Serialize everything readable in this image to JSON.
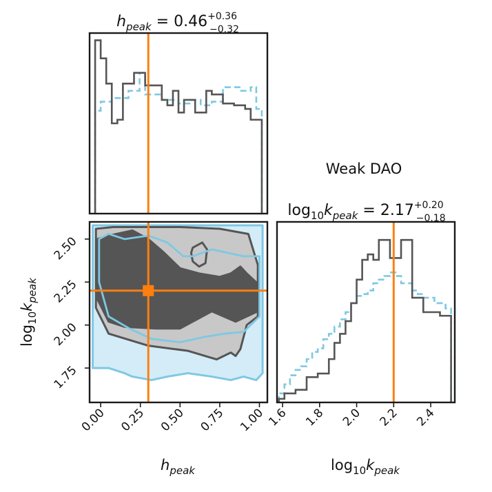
{
  "panel_title": "Weak DAO",
  "colors": {
    "reference": "#7ec8e3",
    "reference_fill": "#d3ecf7",
    "reference_fill_dark": "#a9daf0",
    "posterior": "#555555",
    "contour_inner": "#555555",
    "contour_outer": "#c8c8c8",
    "truth": "#ff7f0e"
  },
  "params": {
    "h": {
      "base": "h",
      "sub": "peak",
      "eq": " = 0.46",
      "plus": "+0.36",
      "minus": "−0.32",
      "axis_label_base": "h",
      "axis_label_sub": "peak"
    },
    "k": {
      "prefix": "log",
      "prefix_sub": "10",
      "base": "k",
      "sub": "peak",
      "eq": " = 2.17",
      "plus": "+0.20",
      "minus": "−0.18",
      "axis_label_prefix": "log",
      "axis_label_prefix_sub": "10",
      "axis_label_base": "k",
      "axis_label_sub": "peak"
    }
  },
  "chart_data": [
    {
      "type": "histogram",
      "panel": "marginal h_peak (top-left)",
      "xlim": [
        -0.07,
        1.05
      ],
      "ylim": [
        0,
        1.0
      ],
      "truth": 0.3,
      "bin_edges": [
        -0.035,
        0.0,
        0.035,
        0.07,
        0.105,
        0.14,
        0.175,
        0.21,
        0.245,
        0.28,
        0.315,
        0.35,
        0.385,
        0.42,
        0.455,
        0.49,
        0.525,
        0.56,
        0.595,
        0.63,
        0.665,
        0.7,
        0.735,
        0.77,
        0.805,
        0.84,
        0.875,
        0.91,
        0.945,
        0.98,
        1.015
      ],
      "series": [
        {
          "name": "posterior",
          "style": "solid",
          "values": [
            0.96,
            0.86,
            0.72,
            0.5,
            0.52,
            0.72,
            0.72,
            0.78,
            0.78,
            0.71,
            0.71,
            0.71,
            0.63,
            0.6,
            0.68,
            0.56,
            0.63,
            0.63,
            0.56,
            0.56,
            0.68,
            0.66,
            0.66,
            0.61,
            0.61,
            0.6,
            0.6,
            0.58,
            0.52,
            0.52
          ]
        },
        {
          "name": "reference",
          "style": "dashed",
          "values": [
            0.57,
            0.62,
            0.62,
            0.64,
            0.64,
            0.64,
            0.68,
            0.68,
            0.78,
            0.66,
            0.66,
            0.66,
            0.63,
            0.63,
            0.63,
            0.61,
            0.61,
            0.63,
            0.63,
            0.6,
            0.6,
            0.62,
            0.62,
            0.7,
            0.7,
            0.7,
            0.68,
            0.68,
            0.7,
            0.58
          ]
        }
      ]
    },
    {
      "type": "contour",
      "panel": "joint h_peak vs log10 k_peak (bottom-left)",
      "xlim": [
        -0.07,
        1.05
      ],
      "ylim": [
        1.55,
        2.6
      ],
      "xticks": [
        "0.00",
        "0.25",
        "0.50",
        "0.75",
        "1.00"
      ],
      "xtick_values": [
        0.0,
        0.25,
        0.5,
        0.75,
        1.0
      ],
      "yticks": [
        "1.75",
        "2.00",
        "2.25",
        "2.50"
      ],
      "ytick_values": [
        1.75,
        2.0,
        2.25,
        2.5
      ],
      "truth": {
        "x": 0.3,
        "y": 2.2
      },
      "levels": [
        {
          "name": "reference 95%",
          "style": "fill",
          "color_key": "reference_fill",
          "x": [
            -0.05,
            1.02,
            1.02,
            0.98,
            0.9,
            0.82,
            0.7,
            0.55,
            0.42,
            0.32,
            0.2,
            0.15,
            0.05,
            -0.05
          ],
          "y": [
            2.58,
            2.58,
            1.72,
            1.68,
            1.7,
            1.68,
            1.7,
            1.72,
            1.7,
            1.68,
            1.7,
            1.72,
            1.75,
            1.75
          ]
        },
        {
          "name": "posterior outer",
          "style": "fill",
          "color_key": "contour_outer",
          "x": [
            -0.03,
            0.08,
            0.5,
            0.75,
            0.93,
            0.99,
            0.99,
            0.92,
            0.88,
            0.85,
            0.82,
            0.73,
            0.55,
            0.3,
            0.05,
            -0.03
          ],
          "y": [
            2.56,
            2.57,
            2.57,
            2.56,
            2.53,
            2.35,
            2.05,
            2.0,
            1.86,
            1.82,
            1.84,
            1.8,
            1.85,
            1.88,
            1.95,
            2.1
          ]
        },
        {
          "name": "posterior inner",
          "style": "fill",
          "color_key": "contour_inner",
          "x": [
            -0.02,
            0.05,
            0.2,
            0.3,
            0.4,
            0.5,
            0.62,
            0.75,
            0.82,
            0.88,
            0.92,
            0.99,
            0.99,
            0.92,
            0.85,
            0.7,
            0.5,
            0.35,
            0.15,
            0.05,
            -0.02
          ],
          "y": [
            2.5,
            2.52,
            2.55,
            2.5,
            2.42,
            2.33,
            2.3,
            2.28,
            2.3,
            2.34,
            2.3,
            2.24,
            2.08,
            2.05,
            2.02,
            2.08,
            1.98,
            1.98,
            1.99,
            2.02,
            2.15
          ]
        },
        {
          "name": "posterior hole",
          "style": "fill",
          "color_key": "contour_outer",
          "x": [
            0.58,
            0.64,
            0.67,
            0.66,
            0.62,
            0.58,
            0.57
          ],
          "y": [
            2.45,
            2.48,
            2.44,
            2.36,
            2.34,
            2.37,
            2.42
          ]
        },
        {
          "name": "reference 68%",
          "style": "line",
          "color_key": "reference",
          "x": [
            -0.01,
            0.05,
            0.15,
            0.3,
            0.42,
            0.52,
            0.58,
            0.7,
            0.9,
            1.0,
            1.0,
            0.9,
            0.78,
            0.65,
            0.5,
            0.32,
            0.18,
            0.05,
            -0.01
          ],
          "y": [
            2.5,
            2.53,
            2.5,
            2.52,
            2.48,
            2.4,
            2.4,
            2.44,
            2.4,
            2.4,
            2.05,
            1.96,
            1.95,
            1.93,
            1.9,
            1.92,
            1.98,
            2.05,
            2.25
          ]
        }
      ]
    },
    {
      "type": "histogram",
      "panel": "marginal log10 k_peak (bottom-right)",
      "xlim": [
        1.57,
        2.53
      ],
      "ylim": [
        0,
        1.0
      ],
      "truth": 2.2,
      "xticks": [
        "1.6",
        "1.8",
        "2.0",
        "2.2",
        "2.4"
      ],
      "xtick_values": [
        1.6,
        1.8,
        2.0,
        2.2,
        2.4
      ],
      "bin_edges": [
        1.58,
        1.61,
        1.64,
        1.67,
        1.7,
        1.73,
        1.76,
        1.79,
        1.82,
        1.85,
        1.88,
        1.91,
        1.94,
        1.97,
        2.0,
        2.03,
        2.06,
        2.09,
        2.12,
        2.15,
        2.18,
        2.21,
        2.24,
        2.27,
        2.3,
        2.33,
        2.36,
        2.39,
        2.42,
        2.45,
        2.48,
        2.51
      ],
      "series": [
        {
          "name": "posterior",
          "style": "solid",
          "values": [
            0.02,
            0.05,
            0.05,
            0.07,
            0.07,
            0.14,
            0.14,
            0.16,
            0.16,
            0.24,
            0.33,
            0.38,
            0.45,
            0.55,
            0.68,
            0.79,
            0.82,
            0.79,
            0.9,
            0.9,
            0.8,
            0.8,
            0.9,
            0.9,
            0.58,
            0.58,
            0.5,
            0.5,
            0.5,
            0.48,
            0.48
          ]
        },
        {
          "name": "reference",
          "style": "dashed",
          "values": [
            0.05,
            0.1,
            0.15,
            0.18,
            0.2,
            0.24,
            0.28,
            0.3,
            0.35,
            0.38,
            0.42,
            0.46,
            0.5,
            0.55,
            0.59,
            0.6,
            0.62,
            0.66,
            0.68,
            0.7,
            0.72,
            0.7,
            0.66,
            0.66,
            0.62,
            0.6,
            0.58,
            0.58,
            0.55,
            0.55,
            0.52
          ]
        }
      ]
    }
  ]
}
